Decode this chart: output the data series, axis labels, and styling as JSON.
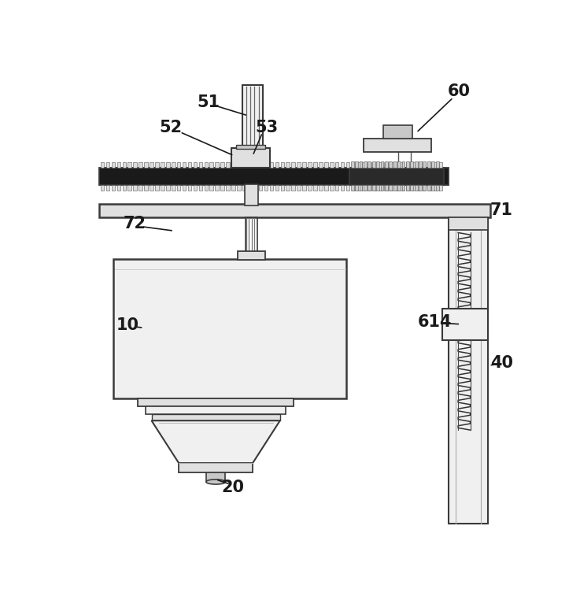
{
  "bg_color": "#ffffff",
  "lc": "#3a3a3a",
  "lc2": "#555555",
  "dark": "#1a1a1a",
  "fill_light": "#f0f0f0",
  "fill_mid": "#e0e0e0",
  "fill_dark": "#c8c8c8",
  "tooth_fill": "#e8e8e8"
}
